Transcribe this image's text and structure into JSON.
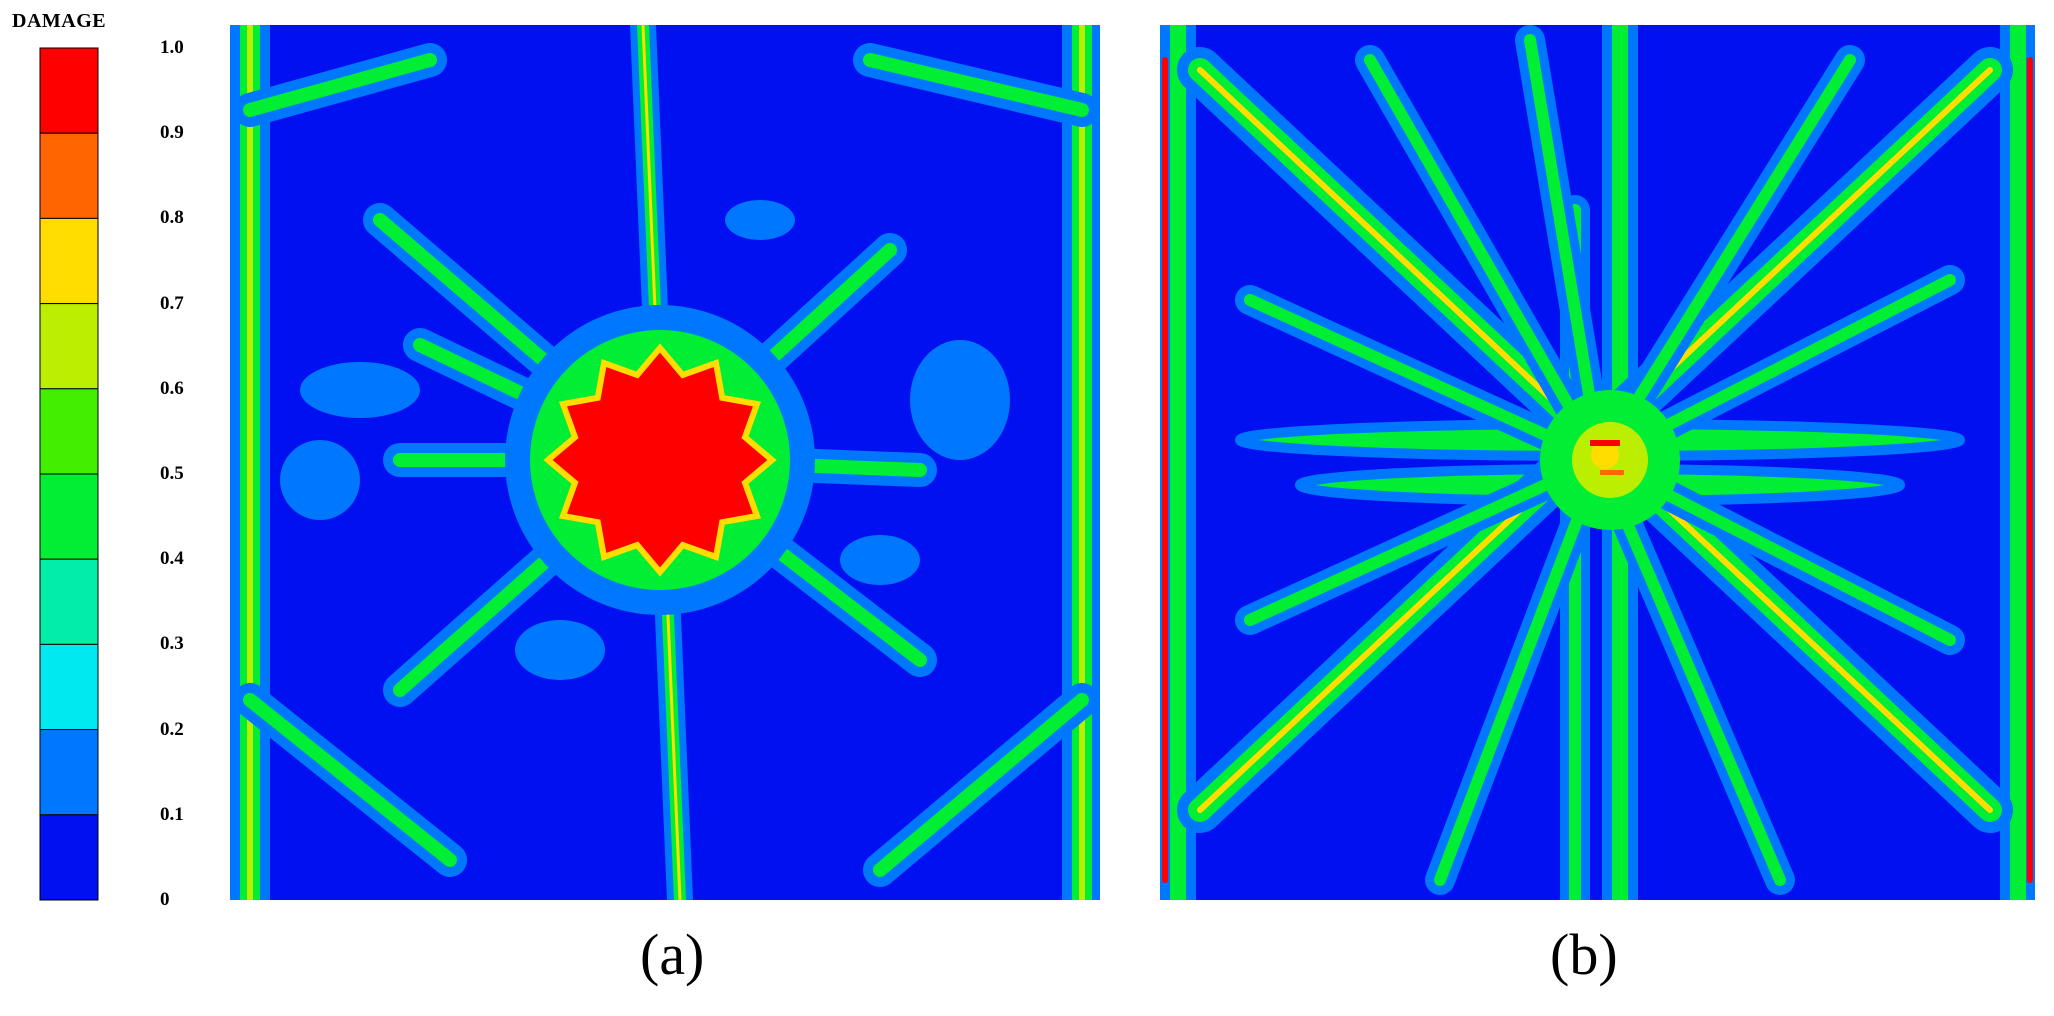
{
  "legend": {
    "title": "DAMAGE",
    "levels": [
      {
        "label": "1.0",
        "color": "#FF0000"
      },
      {
        "label": "0.9",
        "color": "#FF6600"
      },
      {
        "label": "0.8",
        "color": "#FFDD00"
      },
      {
        "label": "0.7",
        "color": "#BBEE00"
      },
      {
        "label": "0.6",
        "color": "#44EE00"
      },
      {
        "label": "0.5",
        "color": "#00EE33"
      },
      {
        "label": "0.4",
        "color": "#00EEAA"
      },
      {
        "label": "0.3",
        "color": "#00E8F0"
      },
      {
        "label": "0.2",
        "color": "#0077FF"
      },
      {
        "label": "0.1",
        "color": "#0010F0"
      },
      {
        "label": "0",
        "color": null
      }
    ]
  },
  "panels": [
    {
      "caption": "(a)",
      "pattern": "central red damage zone with radial and boundary cracks"
    },
    {
      "caption": "(b)",
      "pattern": "radial cracks from center with cross-shaped bands"
    }
  ],
  "colors": {
    "background": "#0010F0",
    "band_outer": "#0077FF",
    "band_mid": "#00EE33",
    "band_inner": "#FFDD00",
    "core": "#FF0000"
  }
}
